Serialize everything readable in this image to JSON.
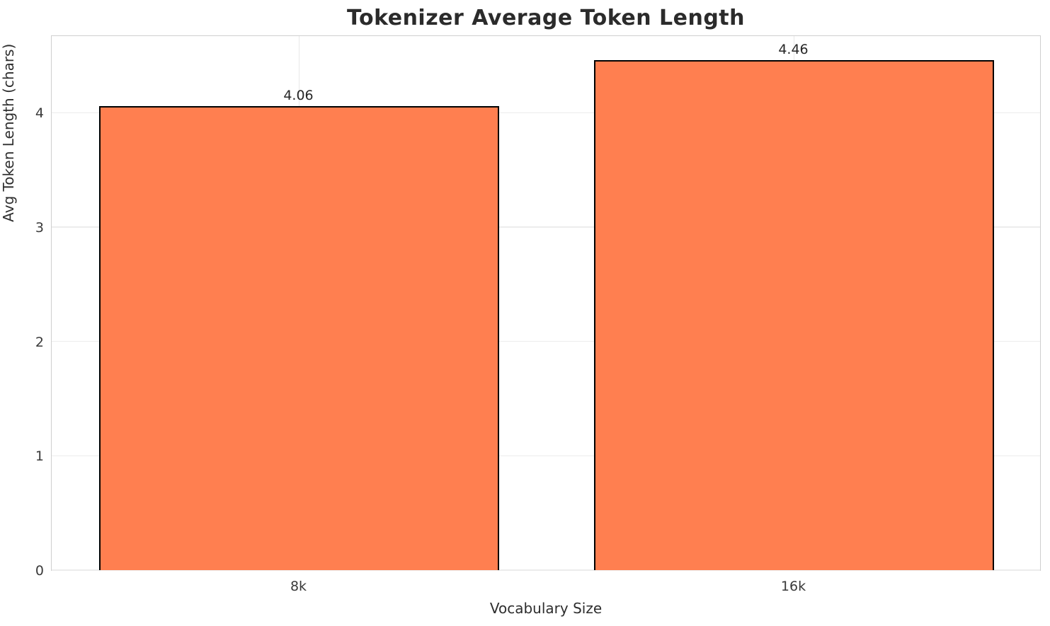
{
  "chart_data": {
    "type": "bar",
    "title": "Tokenizer Average Token Length",
    "xlabel": "Vocabulary Size",
    "ylabel": "Avg Token Length (chars)",
    "categories": [
      "8k",
      "16k"
    ],
    "values": [
      4.06,
      4.46
    ],
    "value_labels": [
      "4.06",
      "4.46"
    ],
    "yticks": [
      0,
      1,
      2,
      3,
      4
    ],
    "ylim": [
      0,
      4.683
    ],
    "grid": true,
    "legend": "none",
    "bar_color": "#FF7F50",
    "bar_edge_color": "#000000",
    "spine_color": "#cfcfcf",
    "grid_color": "#ececec",
    "text_color": "#262626"
  }
}
